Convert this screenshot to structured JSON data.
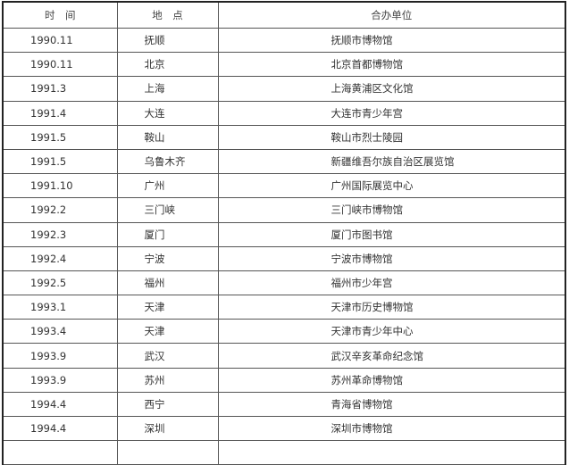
{
  "headers": {
    "time": "时　间",
    "place": "地　点",
    "unit": "合办单位"
  },
  "rows": [
    {
      "time": "1990.11",
      "place": "抚顺",
      "unit": "抚顺市博物馆"
    },
    {
      "time": "1990.11",
      "place": "北京",
      "unit": "北京首都博物馆"
    },
    {
      "time": "1991.3",
      "place": "上海",
      "unit": "上海黄浦区文化馆"
    },
    {
      "time": "1991.4",
      "place": "大连",
      "unit": "大连市青少年宫"
    },
    {
      "time": "1991.5",
      "place": "鞍山",
      "unit": "鞍山市烈士陵园"
    },
    {
      "time": "1991.5",
      "place": "乌鲁木齐",
      "unit": "新疆维吾尔族自治区展览馆"
    },
    {
      "time": "1991.10",
      "place": "广州",
      "unit": "广州国际展览中心"
    },
    {
      "time": "1992.2",
      "place": "三门峡",
      "unit": "三门峡市博物馆"
    },
    {
      "time": "1992.3",
      "place": "厦门",
      "unit": "厦门市图书馆"
    },
    {
      "time": "1992.4",
      "place": "宁波",
      "unit": "宁波市博物馆"
    },
    {
      "time": "1992.5",
      "place": "福州",
      "unit": "福州市少年宫"
    },
    {
      "time": "1993.1",
      "place": "天津",
      "unit": "天津市历史博物馆"
    },
    {
      "time": "1993.4",
      "place": "天津",
      "unit": "天津市青少年中心"
    },
    {
      "time": "1993.9",
      "place": "武汉",
      "unit": "武汉辛亥革命纪念馆"
    },
    {
      "time": "1993.9",
      "place": "苏州",
      "unit": "苏州革命博物馆"
    },
    {
      "time": "1994.4",
      "place": "西宁",
      "unit": "青海省博物馆"
    },
    {
      "time": "1994.4",
      "place": "深圳",
      "unit": "深圳市博物馆"
    }
  ]
}
